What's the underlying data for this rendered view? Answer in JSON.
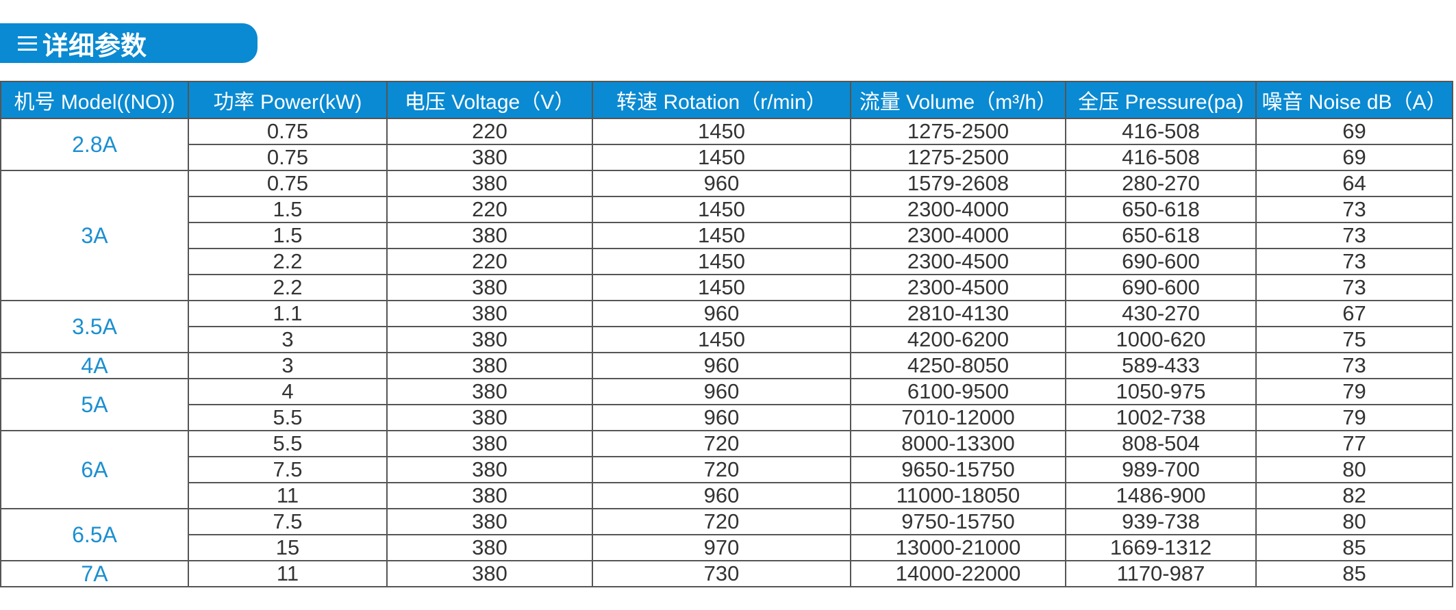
{
  "header": {
    "title": "详细参数"
  },
  "table": {
    "headers": [
      "机号 Model((NO))",
      "功率 Power(kW)",
      "电压 Voltage（V）",
      "转速 Rotation（r/min）",
      "流量 Volume（m³/h）",
      "全压 Pressure(pa)",
      "噪音 Noise dB（A）"
    ],
    "groups": [
      {
        "model": "2.8A",
        "rows": [
          [
            "0.75",
            "220",
            "1450",
            "1275-2500",
            "416-508",
            "69"
          ],
          [
            "0.75",
            "380",
            "1450",
            "1275-2500",
            "416-508",
            "69"
          ]
        ]
      },
      {
        "model": "3A",
        "rows": [
          [
            "0.75",
            "380",
            "960",
            "1579-2608",
            "280-270",
            "64"
          ],
          [
            "1.5",
            "220",
            "1450",
            "2300-4000",
            "650-618",
            "73"
          ],
          [
            "1.5",
            "380",
            "1450",
            "2300-4000",
            "650-618",
            "73"
          ],
          [
            "2.2",
            "220",
            "1450",
            "2300-4500",
            "690-600",
            "73"
          ],
          [
            "2.2",
            "380",
            "1450",
            "2300-4500",
            "690-600",
            "73"
          ]
        ]
      },
      {
        "model": "3.5A",
        "rows": [
          [
            "1.1",
            "380",
            "960",
            "2810-4130",
            "430-270",
            "67"
          ],
          [
            "3",
            "380",
            "1450",
            "4200-6200",
            "1000-620",
            "75"
          ]
        ]
      },
      {
        "model": "4A",
        "rows": [
          [
            "3",
            "380",
            "960",
            "4250-8050",
            "589-433",
            "73"
          ]
        ]
      },
      {
        "model": "5A",
        "rows": [
          [
            "4",
            "380",
            "960",
            "6100-9500",
            "1050-975",
            "79"
          ],
          [
            "5.5",
            "380",
            "960",
            "7010-12000",
            "1002-738",
            "79"
          ]
        ]
      },
      {
        "model": "6A",
        "rows": [
          [
            "5.5",
            "380",
            "720",
            "8000-13300",
            "808-504",
            "77"
          ],
          [
            "7.5",
            "380",
            "720",
            "9650-15750",
            "989-700",
            "80"
          ],
          [
            "11",
            "380",
            "960",
            "11000-18050",
            "1486-900",
            "82"
          ]
        ]
      },
      {
        "model": "6.5A",
        "rows": [
          [
            "7.5",
            "380",
            "720",
            "9750-15750",
            "939-738",
            "80"
          ],
          [
            "15",
            "380",
            "970",
            "13000-21000",
            "1669-1312",
            "85"
          ]
        ]
      },
      {
        "model": "7A",
        "rows": [
          [
            "11",
            "380",
            "730",
            "14000-22000",
            "1170-987",
            "85"
          ]
        ]
      }
    ]
  }
}
